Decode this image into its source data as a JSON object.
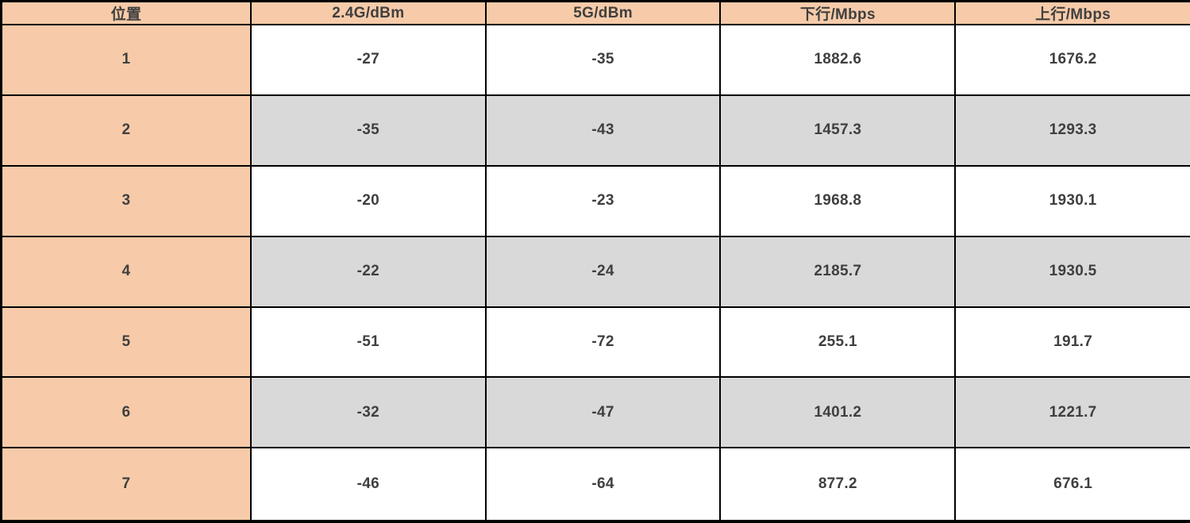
{
  "colors": {
    "header_bg": "#f7cba9",
    "alt_row_bg": "#d9d9d9",
    "row_bg": "#ffffff",
    "grid_border": "#000000",
    "text": "#3f3f3f"
  },
  "table": {
    "columns": [
      "位置",
      "2.4G/dBm",
      "5G/dBm",
      "下行/Mbps",
      "上行/Mbps"
    ],
    "rows": [
      [
        "1",
        "-27",
        "-35",
        "1882.6",
        "1676.2"
      ],
      [
        "2",
        "-35",
        "-43",
        "1457.3",
        "1293.3"
      ],
      [
        "3",
        "-20",
        "-23",
        "1968.8",
        "1930.1"
      ],
      [
        "4",
        "-22",
        "-24",
        "2185.7",
        "1930.5"
      ],
      [
        "5",
        "-51",
        "-72",
        "255.1",
        "191.7"
      ],
      [
        "6",
        "-32",
        "-47",
        "1401.2",
        "1221.7"
      ],
      [
        "7",
        "-46",
        "-64",
        "877.2",
        "676.1"
      ]
    ]
  },
  "chart_data": {
    "type": "table",
    "title": "",
    "columns": [
      "位置",
      "2.4G/dBm",
      "5G/dBm",
      "下行/Mbps",
      "上行/Mbps"
    ],
    "rows": [
      {
        "位置": 1,
        "2.4G/dBm": -27,
        "5G/dBm": -35,
        "下行/Mbps": 1882.6,
        "上行/Mbps": 1676.2
      },
      {
        "位置": 2,
        "2.4G/dBm": -35,
        "5G/dBm": -43,
        "下行/Mbps": 1457.3,
        "上行/Mbps": 1293.3
      },
      {
        "位置": 3,
        "2.4G/dBm": -20,
        "5G/dBm": -23,
        "下行/Mbps": 1968.8,
        "上行/Mbps": 1930.1
      },
      {
        "位置": 4,
        "2.4G/dBm": -22,
        "5G/dBm": -24,
        "下行/Mbps": 2185.7,
        "上行/Mbps": 1930.5
      },
      {
        "位置": 5,
        "2.4G/dBm": -51,
        "5G/dBm": -72,
        "下行/Mbps": 255.1,
        "上行/Mbps": 191.7
      },
      {
        "位置": 6,
        "2.4G/dBm": -32,
        "5G/dBm": -47,
        "下行/Mbps": 1401.2,
        "上行/Mbps": 1221.7
      },
      {
        "位置": 7,
        "2.4G/dBm": -46,
        "5G/dBm": -64,
        "下行/Mbps": 877.2,
        "上行/Mbps": 676.1
      }
    ],
    "layout_hints": {
      "header_fill": "peach",
      "first_column_fill": "peach",
      "alternating_rows": "white/grey starting white",
      "grid": true
    }
  }
}
